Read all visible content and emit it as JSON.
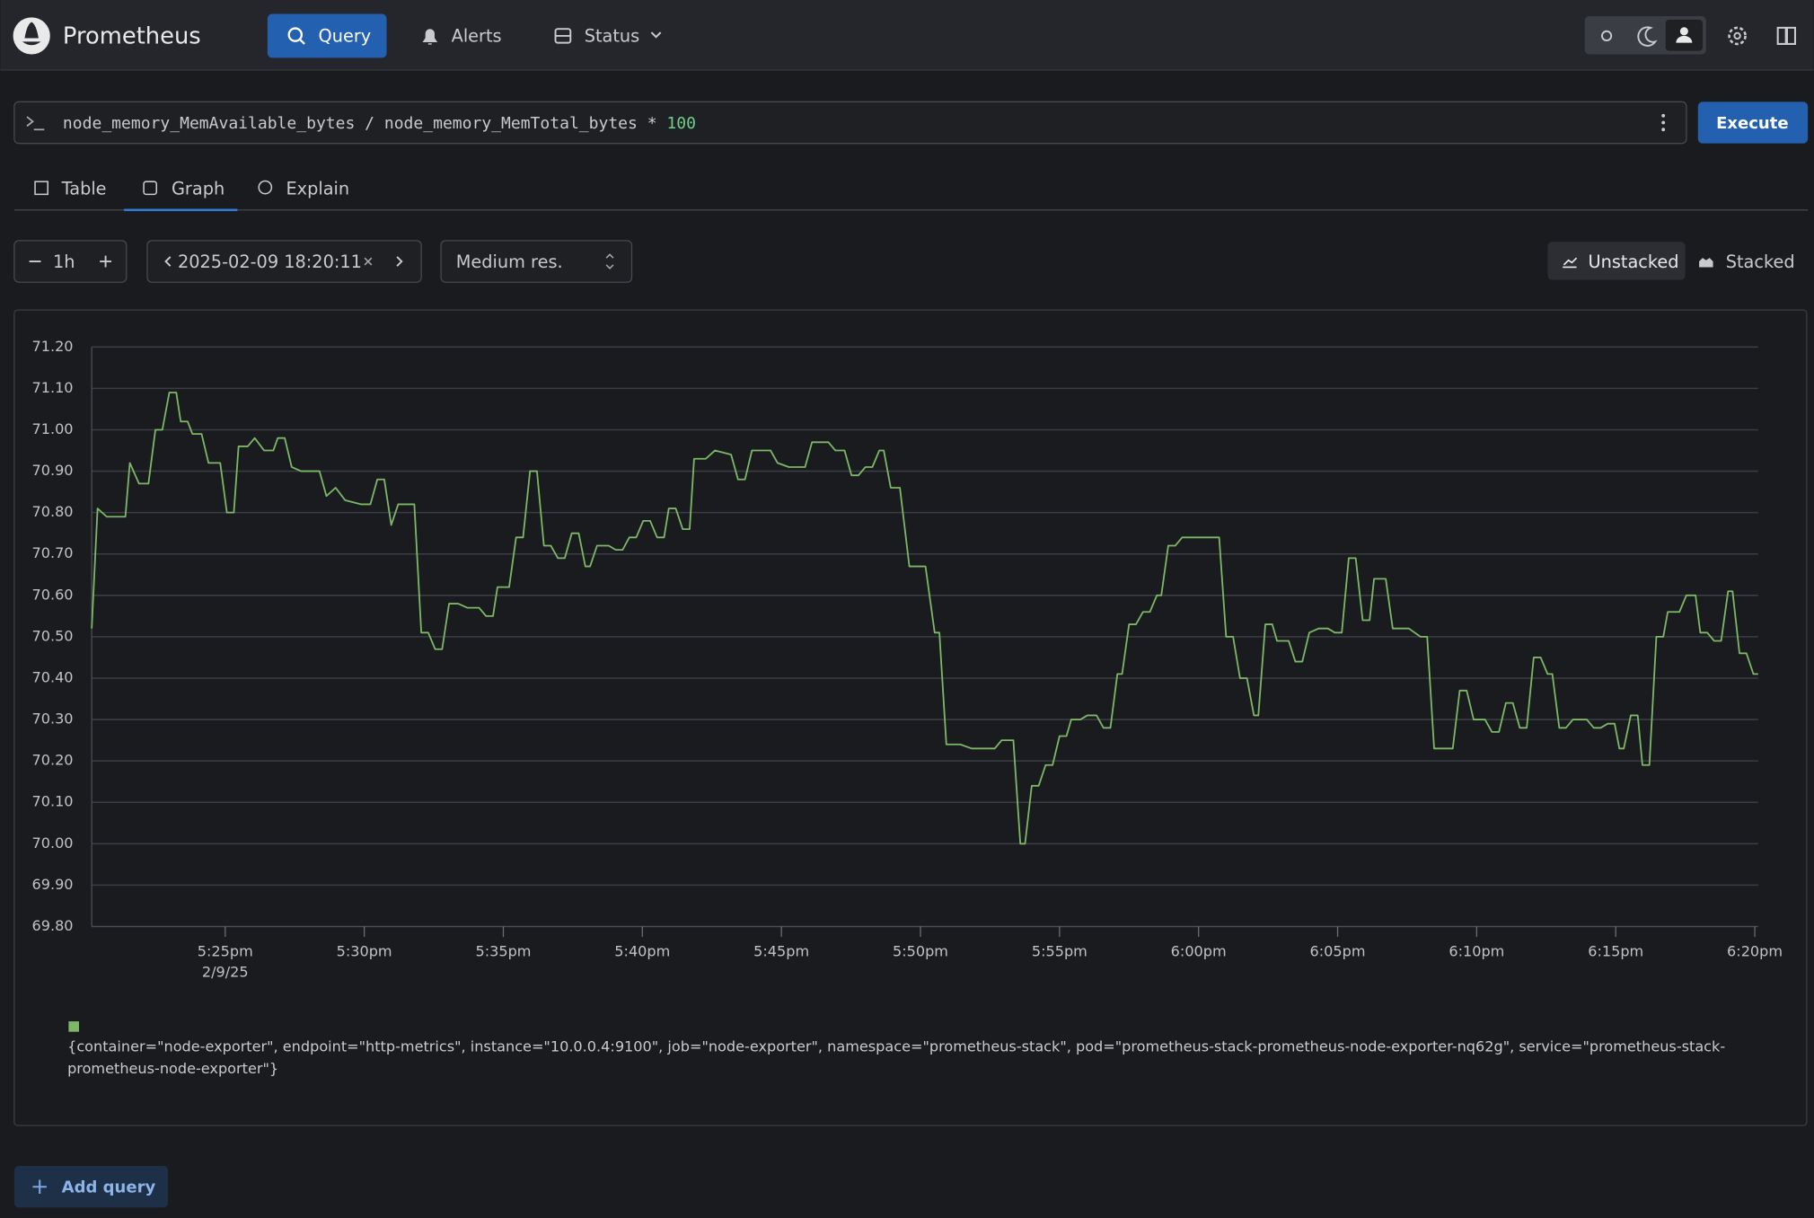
{
  "navbar": {
    "brand": "Prometheus",
    "items": [
      "Query",
      "Alerts",
      "Status"
    ]
  },
  "query": {
    "expression": "node_memory_MemAvailable_bytes / node_memory_MemTotal_bytes *",
    "expression_number": "100",
    "button": "Execute"
  },
  "tabs": [
    "Table",
    "Graph",
    "Explain"
  ],
  "controls": {
    "range": "1h",
    "end_time": "2025-02-09 18:20:11",
    "resolution": "Medium res.",
    "stack_modes": [
      "Unstacked",
      "Stacked"
    ]
  },
  "add_query": "Add query",
  "chart_data": {
    "type": "line",
    "x": [
      1040.2,
      1040.41,
      1040.74,
      1041.41,
      1041.57,
      1041.9,
      1042.24,
      1042.49,
      1042.74,
      1042.99,
      1043.24,
      1043.4,
      1043.65,
      1043.82,
      1044.15,
      1044.4,
      1044.82,
      1045.06,
      1045.31,
      1045.48,
      1045.81,
      1046.06,
      1046.4,
      1046.73,
      1046.89,
      1047.14,
      1047.39,
      1047.73,
      1048.06,
      1048.39,
      1048.64,
      1048.97,
      1049.31,
      1049.89,
      1050.22,
      1050.47,
      1050.72,
      1050.97,
      1051.22,
      1051.8,
      1052.05,
      1052.3,
      1052.55,
      1052.8,
      1053.05,
      1053.38,
      1053.71,
      1054.13,
      1054.38,
      1054.63,
      1054.79,
      1055.21,
      1055.46,
      1055.71,
      1055.96,
      1056.21,
      1056.46,
      1056.71,
      1056.96,
      1057.21,
      1057.46,
      1057.71,
      1057.95,
      1058.12,
      1058.37,
      1058.79,
      1059.04,
      1059.29,
      1059.53,
      1059.78,
      1060.03,
      1060.28,
      1060.53,
      1060.78,
      1060.95,
      1061.2,
      1061.45,
      1061.7,
      1061.86,
      1062.28,
      1062.61,
      1063.19,
      1063.44,
      1063.69,
      1063.94,
      1064.61,
      1064.86,
      1065.27,
      1065.85,
      1066.1,
      1066.69,
      1066.94,
      1067.27,
      1067.52,
      1067.77,
      1068.02,
      1068.27,
      1068.52,
      1068.68,
      1068.93,
      1069.26,
      1069.6,
      1070.18,
      1070.51,
      1070.68,
      1070.93,
      1071.43,
      1071.84,
      1072.18,
      1072.67,
      1072.92,
      1073.34,
      1073.59,
      1073.76,
      1074.0,
      1074.25,
      1074.5,
      1074.75,
      1075.0,
      1075.25,
      1075.42,
      1075.75,
      1076.0,
      1076.33,
      1076.58,
      1076.83,
      1077.08,
      1077.25,
      1077.5,
      1077.75,
      1078.0,
      1078.25,
      1078.5,
      1078.66,
      1078.91,
      1079.16,
      1079.41,
      1079.74,
      1080.16,
      1080.74,
      1080.99,
      1081.24,
      1081.49,
      1081.74,
      1081.99,
      1082.15,
      1082.4,
      1082.65,
      1082.82,
      1083.24,
      1083.48,
      1083.73,
      1083.98,
      1084.32,
      1084.65,
      1084.9,
      1085.15,
      1085.4,
      1085.65,
      1085.9,
      1086.15,
      1086.31,
      1086.73,
      1086.98,
      1087.56,
      1087.98,
      1088.22,
      1088.47,
      1088.89,
      1089.14,
      1089.39,
      1089.64,
      1089.89,
      1090.3,
      1090.55,
      1090.8,
      1091.05,
      1091.3,
      1091.55,
      1091.8,
      1092.05,
      1092.3,
      1092.55,
      1092.72,
      1092.97,
      1093.21,
      1093.46,
      1093.96,
      1094.21,
      1094.46,
      1094.71,
      1094.96,
      1095.13,
      1095.29,
      1095.54,
      1095.79,
      1095.96,
      1096.21,
      1096.46,
      1096.71,
      1096.87,
      1097.29,
      1097.54,
      1097.87,
      1098.04,
      1098.29,
      1098.54,
      1098.79,
      1099.04,
      1099.2,
      1099.45,
      1099.7,
      1099.95,
      1100.12
    ],
    "xlim": [
      1040.2,
      1100.12
    ],
    "xticks": [
      {
        "value": 1045,
        "label": "5:25pm"
      },
      {
        "value": 1050,
        "label": "5:30pm"
      },
      {
        "value": 1055,
        "label": "5:35pm"
      },
      {
        "value": 1060,
        "label": "5:40pm"
      },
      {
        "value": 1065,
        "label": "5:45pm"
      },
      {
        "value": 1070,
        "label": "5:50pm"
      },
      {
        "value": 1075,
        "label": "5:55pm"
      },
      {
        "value": 1080,
        "label": "6:00pm"
      },
      {
        "value": 1085,
        "label": "6:05pm"
      },
      {
        "value": 1090,
        "label": "6:10pm"
      },
      {
        "value": 1095,
        "label": "6:15pm"
      },
      {
        "value": 1100,
        "label": "6:20pm"
      }
    ],
    "x_date_label": "2/9/25",
    "ylim": [
      69.8,
      71.2
    ],
    "yticks": [
      {
        "value": 69.8,
        "label": "69.80"
      },
      {
        "value": 69.9,
        "label": "69.90"
      },
      {
        "value": 70.0,
        "label": "70.00"
      },
      {
        "value": 70.1,
        "label": "70.10"
      },
      {
        "value": 70.2,
        "label": "70.20"
      },
      {
        "value": 70.3,
        "label": "70.30"
      },
      {
        "value": 70.4,
        "label": "70.40"
      },
      {
        "value": 70.5,
        "label": "70.50"
      },
      {
        "value": 70.6,
        "label": "70.60"
      },
      {
        "value": 70.7,
        "label": "70.70"
      },
      {
        "value": 70.8,
        "label": "70.80"
      },
      {
        "value": 70.9,
        "label": "70.90"
      },
      {
        "value": 71.0,
        "label": "71.00"
      },
      {
        "value": 71.1,
        "label": "71.10"
      },
      {
        "value": 71.2,
        "label": "71.20"
      }
    ],
    "grid": true,
    "series": [
      {
        "name": "{container=\"node-exporter\", endpoint=\"http-metrics\", instance=\"10.0.0.4:9100\", job=\"node-exporter\", namespace=\"prometheus-stack\", pod=\"prometheus-stack-prometheus-node-exporter-nq62g\", service=\"prometheus-stack-prometheus-node-exporter\"}",
        "color": "#7cb868",
        "values": [
          70.52,
          70.81,
          70.79,
          70.79,
          70.92,
          70.87,
          70.87,
          71.0,
          71.0,
          71.09,
          71.09,
          71.02,
          71.02,
          70.99,
          70.99,
          70.92,
          70.92,
          70.8,
          70.8,
          70.96,
          70.96,
          70.98,
          70.95,
          70.95,
          70.98,
          70.98,
          70.91,
          70.9,
          70.9,
          70.9,
          70.84,
          70.86,
          70.83,
          70.82,
          70.82,
          70.88,
          70.88,
          70.77,
          70.82,
          70.82,
          70.51,
          70.51,
          70.47,
          70.47,
          70.58,
          70.58,
          70.57,
          70.57,
          70.55,
          70.55,
          70.62,
          70.62,
          70.74,
          70.74,
          70.9,
          70.9,
          70.72,
          70.72,
          70.69,
          70.69,
          70.75,
          70.75,
          70.67,
          70.67,
          70.72,
          70.72,
          70.71,
          70.71,
          70.74,
          70.74,
          70.78,
          70.78,
          70.74,
          70.74,
          70.81,
          70.81,
          70.76,
          70.76,
          70.93,
          70.93,
          70.95,
          70.94,
          70.88,
          70.88,
          70.95,
          70.95,
          70.92,
          70.91,
          70.91,
          70.97,
          70.97,
          70.95,
          70.95,
          70.89,
          70.89,
          70.91,
          70.91,
          70.95,
          70.95,
          70.86,
          70.86,
          70.67,
          70.67,
          70.51,
          70.51,
          70.24,
          70.24,
          70.23,
          70.23,
          70.23,
          70.25,
          70.25,
          70.0,
          70.0,
          70.14,
          70.14,
          70.19,
          70.19,
          70.26,
          70.26,
          70.3,
          70.3,
          70.31,
          70.31,
          70.28,
          70.28,
          70.41,
          70.41,
          70.53,
          70.53,
          70.56,
          70.56,
          70.6,
          70.6,
          70.72,
          70.72,
          70.74,
          70.74,
          70.74,
          70.74,
          70.5,
          70.5,
          70.4,
          70.4,
          70.31,
          70.31,
          70.53,
          70.53,
          70.49,
          70.49,
          70.44,
          70.44,
          70.51,
          70.52,
          70.52,
          70.51,
          70.51,
          70.69,
          70.69,
          70.54,
          70.54,
          70.64,
          70.64,
          70.52,
          70.52,
          70.5,
          70.5,
          70.23,
          70.23,
          70.23,
          70.37,
          70.37,
          70.3,
          70.3,
          70.27,
          70.27,
          70.34,
          70.34,
          70.28,
          70.28,
          70.45,
          70.45,
          70.41,
          70.41,
          70.28,
          70.28,
          70.3,
          70.3,
          70.28,
          70.28,
          70.29,
          70.29,
          70.23,
          70.23,
          70.31,
          70.31,
          70.19,
          70.19,
          70.5,
          70.5,
          70.56,
          70.56,
          70.6,
          70.6,
          70.51,
          70.51,
          70.49,
          70.49,
          70.61,
          70.61,
          70.46,
          70.46,
          70.41,
          70.41
        ]
      }
    ]
  }
}
